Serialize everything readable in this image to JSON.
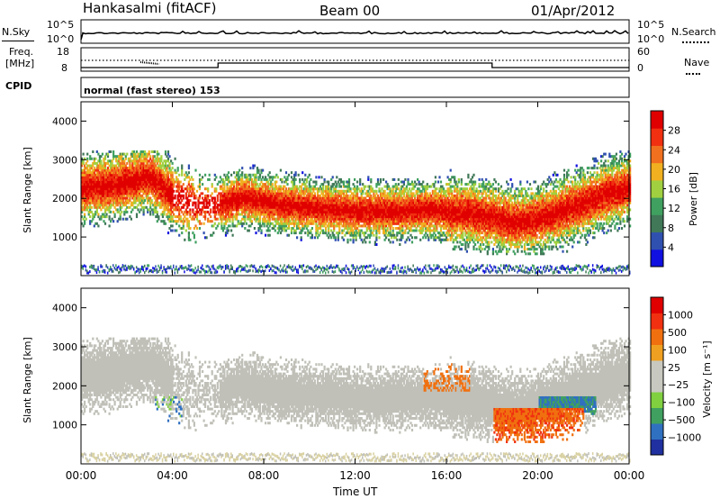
{
  "header": {
    "station": "Hankasalmi (fitACF)",
    "beam": "Beam 00",
    "date": "01/Apr/2012"
  },
  "noise_panel": {
    "left_label": "N.Sky",
    "ticks": [
      "10^5",
      "10^0"
    ],
    "right_label": "N.Search",
    "right_ticks": [
      "10^5",
      "10^0"
    ]
  },
  "freq_panel": {
    "left_label_1": "Freq.",
    "left_label_2": "[MHz]",
    "left_ticks": [
      "18",
      "8"
    ],
    "right_label": "Nave",
    "right_ticks": [
      "60",
      "0"
    ]
  },
  "cpid": {
    "label": "CPID",
    "value": "normal (fast stereo) 153"
  },
  "colors": {
    "power_scale": [
      "#1010e0",
      "#3050b0",
      "#407858",
      "#40a060",
      "#a0d040",
      "#f0b020",
      "#f07020",
      "#f03010",
      "#e00000"
    ],
    "velocity_scale": [
      "#2030a0",
      "#3070c0",
      "#40a060",
      "#80d040",
      "#c8c8c0",
      "#c8c8c0",
      "#f0a020",
      "#f07010",
      "#f03010",
      "#e00000"
    ],
    "ground_scatter": "#c0c0b8"
  },
  "chart_data": [
    {
      "type": "heatmap",
      "title": "Power",
      "ylabel": "Slant Range [km]",
      "ylim": [
        0,
        4500
      ],
      "yticks": [
        "4000",
        "3000",
        "2000",
        "1000"
      ],
      "xticks": [
        "00:00",
        "04:00",
        "08:00",
        "12:00",
        "16:00",
        "20:00",
        "00:00"
      ],
      "colorbar": {
        "label": "Power [dB]",
        "ticks": [
          "28",
          "24",
          "20",
          "16",
          "12",
          "8",
          "4"
        ]
      },
      "bands": [
        {
          "name": "main",
          "t": [
            0,
            1,
            2,
            3,
            4,
            5,
            6,
            7,
            8,
            9,
            10,
            11,
            12,
            13,
            14,
            15,
            16,
            17,
            18,
            19,
            20,
            21,
            22,
            23,
            24
          ],
          "center_km": [
            2300,
            2350,
            2450,
            2600,
            2100,
            1850,
            1850,
            2050,
            1950,
            1850,
            1800,
            1750,
            1700,
            1700,
            1700,
            1750,
            1700,
            1650,
            1550,
            1400,
            1500,
            1700,
            1900,
            2150,
            2300
          ]
        }
      ]
    },
    {
      "type": "heatmap",
      "title": "Velocity",
      "ylabel": "Slant Range [km]",
      "ylim": [
        0,
        4500
      ],
      "yticks": [
        "4000",
        "3000",
        "2000",
        "1000"
      ],
      "xticks": [
        "00:00",
        "04:00",
        "08:00",
        "12:00",
        "16:00",
        "20:00",
        "00:00"
      ],
      "xlabel": "Time UT",
      "colorbar": {
        "label": "Velocity [m s⁻¹]",
        "ticks": [
          "1000",
          "500",
          "100",
          "25",
          "−25",
          "−100",
          "−500",
          "−1000"
        ]
      }
    }
  ]
}
